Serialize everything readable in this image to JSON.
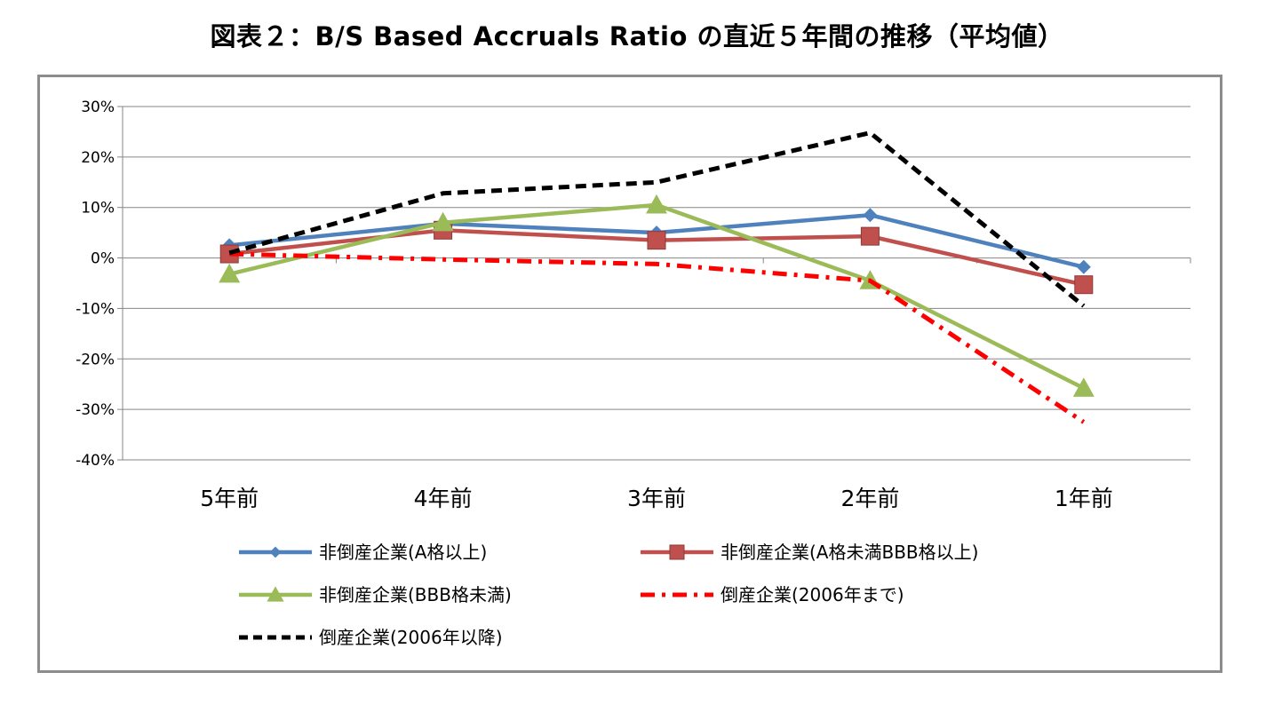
{
  "page": {
    "title": "図表２：B/S Based Accruals Ratio の直近５年間の推移（平均値）"
  },
  "chart_data": {
    "type": "line",
    "title": "図表２：B/S Based Accruals Ratio の直近５年間の推移（平均値）",
    "categories": [
      "5年前",
      "4年前",
      "3年前",
      "2年前",
      "1年前"
    ],
    "y_ticks": [
      "30%",
      "20%",
      "10%",
      "0%",
      "-10%",
      "-20%",
      "-30%",
      "-40%"
    ],
    "ylim": [
      -40,
      30
    ],
    "y_unit": "%",
    "grid": true,
    "legend_position": "bottom",
    "series": [
      {
        "name": "非倒産企業(A格以上)",
        "values": [
          2.5,
          6.8,
          5.0,
          8.5,
          -1.8
        ],
        "color": "#4f81bd",
        "line_style": "solid",
        "marker": "diamond"
      },
      {
        "name": "非倒産企業(A格未満BBB格以上)",
        "values": [
          0.8,
          5.5,
          3.5,
          4.3,
          -5.3
        ],
        "color": "#c0504d",
        "line_style": "solid",
        "marker": "square"
      },
      {
        "name": "非倒産企業(BBB格未満)",
        "values": [
          -3.2,
          7.0,
          10.5,
          -4.5,
          -25.8
        ],
        "color": "#9bbb59",
        "line_style": "solid",
        "marker": "triangle"
      },
      {
        "name": "倒産企業(2006年まで)",
        "values": [
          0.8,
          -0.3,
          -1.2,
          -4.5,
          -32.5
        ],
        "color": "#ff0000",
        "line_style": "dash-dot",
        "marker": "none"
      },
      {
        "name": "倒産企業(2006年以降)",
        "values": [
          1.0,
          12.8,
          15.0,
          24.8,
          -9.5
        ],
        "color": "#000000",
        "line_style": "dashed",
        "marker": "none"
      }
    ]
  }
}
